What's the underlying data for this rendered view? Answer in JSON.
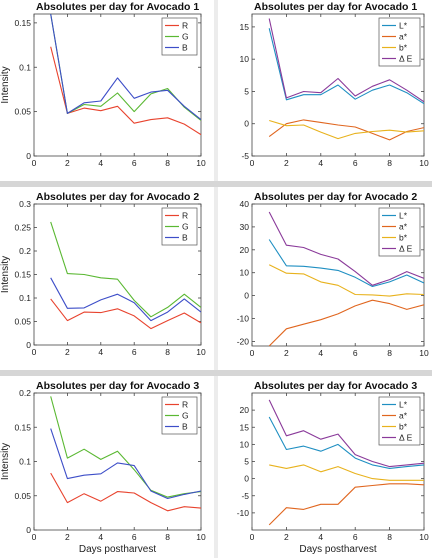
{
  "colors": {
    "R": "#e8432e",
    "G": "#5ab832",
    "B": "#3d4ec8",
    "L": "#1f8fc2",
    "a": "#e0661f",
    "b": "#e8b21d",
    "dE": "#8a3a9a",
    "axis": "#444444",
    "grid": "#888888"
  },
  "chart_data": [
    {
      "type": "line",
      "title": "Absolutes per day for Avocado 1",
      "xlabel": "",
      "ylabel": "Intensity",
      "xlim": [
        0,
        10
      ],
      "ylim": [
        0,
        0.16
      ],
      "xticks": [
        0,
        2,
        4,
        6,
        8,
        10
      ],
      "yticks": [
        0,
        0.05,
        0.1,
        0.15
      ],
      "ytick_labels": [
        "0",
        "0.05",
        "0.1",
        "0.15"
      ],
      "legend": "top-right",
      "x": [
        1,
        2,
        3,
        4,
        5,
        6,
        7,
        8,
        9,
        10
      ],
      "series": [
        {
          "name": "R",
          "color_key": "R",
          "values": [
            0.123,
            0.048,
            0.054,
            0.051,
            0.056,
            0.037,
            0.041,
            0.043,
            0.036,
            0.024
          ]
        },
        {
          "name": "G",
          "color_key": "G",
          "values": [
            0.16,
            0.048,
            0.058,
            0.056,
            0.071,
            0.05,
            0.07,
            0.076,
            0.055,
            0.04
          ]
        },
        {
          "name": "B",
          "color_key": "B",
          "values": [
            0.16,
            0.048,
            0.06,
            0.062,
            0.088,
            0.065,
            0.072,
            0.074,
            0.056,
            0.041
          ]
        }
      ]
    },
    {
      "type": "line",
      "title": "Absolutes per day for Avocado 1",
      "xlabel": "",
      "ylabel": "",
      "xlim": [
        0,
        10
      ],
      "ylim": [
        -5,
        17
      ],
      "xticks": [
        0,
        2,
        4,
        6,
        8,
        10
      ],
      "yticks": [
        -5,
        0,
        5,
        10,
        15
      ],
      "ytick_labels": [
        "-5",
        "0",
        "5",
        "10",
        "15"
      ],
      "legend": "top-right",
      "x": [
        1,
        2,
        3,
        4,
        5,
        6,
        7,
        8,
        9,
        10
      ],
      "series": [
        {
          "name": "L*",
          "color_key": "L",
          "values": [
            14.8,
            3.7,
            4.5,
            4.5,
            6.0,
            3.8,
            5.2,
            6.0,
            4.8,
            3.1
          ]
        },
        {
          "name": "a*",
          "color_key": "a",
          "values": [
            -2.0,
            0.0,
            0.6,
            0.2,
            -0.2,
            -0.5,
            -1.5,
            -2.5,
            -1.2,
            -0.6
          ]
        },
        {
          "name": "b*",
          "color_key": "b",
          "values": [
            0.5,
            -0.3,
            -0.2,
            -1.3,
            -2.3,
            -1.5,
            -1.2,
            -1.0,
            -1.3,
            -1.1
          ]
        },
        {
          "name": "Δ E",
          "color_key": "dE",
          "values": [
            16.3,
            4.0,
            5.0,
            4.8,
            7.0,
            4.3,
            5.8,
            6.8,
            5.2,
            3.4
          ]
        }
      ]
    },
    {
      "type": "line",
      "title": "Absolutes per day for Avocado 2",
      "xlabel": "",
      "ylabel": "Intensity",
      "xlim": [
        0,
        10
      ],
      "ylim": [
        0,
        0.3
      ],
      "xticks": [
        0,
        2,
        4,
        6,
        8,
        10
      ],
      "yticks": [
        0,
        0.05,
        0.1,
        0.15,
        0.2,
        0.25,
        0.3
      ],
      "ytick_labels": [
        "0",
        "0.05",
        "0.1",
        "0.15",
        "0.2",
        "0.25",
        "0.3"
      ],
      "legend": "top-right",
      "x": [
        1,
        2,
        3,
        4,
        5,
        6,
        7,
        8,
        9,
        10
      ],
      "series": [
        {
          "name": "R",
          "color_key": "R",
          "values": [
            0.098,
            0.052,
            0.07,
            0.069,
            0.077,
            0.062,
            0.035,
            0.052,
            0.068,
            0.047
          ]
        },
        {
          "name": "G",
          "color_key": "G",
          "values": [
            0.262,
            0.152,
            0.15,
            0.143,
            0.14,
            0.095,
            0.06,
            0.08,
            0.108,
            0.08
          ]
        },
        {
          "name": "B",
          "color_key": "B",
          "values": [
            0.143,
            0.078,
            0.079,
            0.096,
            0.108,
            0.09,
            0.052,
            0.07,
            0.098,
            0.07
          ]
        }
      ]
    },
    {
      "type": "line",
      "title": "Absolutes per day for Avocado 2",
      "xlabel": "",
      "ylabel": "",
      "xlim": [
        0,
        10
      ],
      "ylim": [
        -22,
        40
      ],
      "xticks": [
        0,
        2,
        4,
        6,
        8,
        10
      ],
      "yticks": [
        -20,
        -10,
        0,
        10,
        20,
        30,
        40
      ],
      "ytick_labels": [
        "-20",
        "-10",
        "0",
        "10",
        "20",
        "30",
        "40"
      ],
      "legend": "top-right",
      "x": [
        1,
        2,
        3,
        4,
        5,
        6,
        7,
        8,
        9,
        10
      ],
      "series": [
        {
          "name": "L*",
          "color_key": "L",
          "values": [
            24.5,
            13.0,
            12.8,
            12.0,
            11.0,
            8.0,
            4.0,
            6.0,
            9.0,
            5.5
          ]
        },
        {
          "name": "a*",
          "color_key": "a",
          "values": [
            -22.0,
            -14.5,
            -12.5,
            -10.5,
            -8.0,
            -4.5,
            -2.0,
            -3.5,
            -6.0,
            -4.0
          ]
        },
        {
          "name": "b*",
          "color_key": "b",
          "values": [
            13.5,
            9.8,
            9.5,
            6.0,
            4.5,
            0.5,
            0.3,
            -0.2,
            0.8,
            0.5
          ]
        },
        {
          "name": "Δ E",
          "color_key": "dE",
          "values": [
            36.5,
            22.0,
            21.0,
            18.0,
            16.0,
            10.5,
            4.5,
            7.0,
            10.5,
            7.5
          ]
        }
      ]
    },
    {
      "type": "line",
      "title": "Absolutes per day for Avocado 3",
      "xlabel": "Days postharvest",
      "ylabel": "Intensity",
      "xlim": [
        0,
        10
      ],
      "ylim": [
        0,
        0.2
      ],
      "xticks": [
        0,
        2,
        4,
        6,
        8,
        10
      ],
      "yticks": [
        0,
        0.05,
        0.1,
        0.15,
        0.2
      ],
      "ytick_labels": [
        "0",
        "0.05",
        "0.1",
        "0.15",
        "0.2"
      ],
      "legend": "top-right",
      "x": [
        1,
        2,
        3,
        4,
        5,
        6,
        7,
        8,
        9,
        10
      ],
      "series": [
        {
          "name": "R",
          "color_key": "R",
          "values": [
            0.083,
            0.04,
            0.053,
            0.042,
            0.056,
            0.054,
            0.04,
            0.028,
            0.034,
            0.032
          ]
        },
        {
          "name": "G",
          "color_key": "G",
          "values": [
            0.195,
            0.105,
            0.118,
            0.103,
            0.115,
            0.088,
            0.058,
            0.048,
            0.053,
            0.056
          ]
        },
        {
          "name": "B",
          "color_key": "B",
          "values": [
            0.148,
            0.075,
            0.08,
            0.082,
            0.098,
            0.094,
            0.057,
            0.046,
            0.052,
            0.057
          ]
        }
      ]
    },
    {
      "type": "line",
      "title": "Absolutes per day for Avocado 3",
      "xlabel": "Days postharvest",
      "ylabel": "",
      "xlim": [
        0,
        10
      ],
      "ylim": [
        -15,
        25
      ],
      "xticks": [
        0,
        2,
        4,
        6,
        8,
        10
      ],
      "yticks": [
        -10,
        -5,
        0,
        5,
        10,
        15,
        20
      ],
      "ytick_labels": [
        "-10",
        "-5",
        "0",
        "5",
        "10",
        "15",
        "20"
      ],
      "legend": "top-right",
      "x": [
        1,
        2,
        3,
        4,
        5,
        6,
        7,
        8,
        9,
        10
      ],
      "series": [
        {
          "name": "L*",
          "color_key": "L",
          "values": [
            18.0,
            8.5,
            9.5,
            8.0,
            10.0,
            6.0,
            4.0,
            3.0,
            3.5,
            4.0
          ]
        },
        {
          "name": "a*",
          "color_key": "a",
          "values": [
            -13.5,
            -8.5,
            -9.0,
            -7.5,
            -7.5,
            -2.5,
            -2.0,
            -1.5,
            -1.5,
            -1.8
          ]
        },
        {
          "name": "b*",
          "color_key": "b",
          "values": [
            4.0,
            3.0,
            4.0,
            2.0,
            3.5,
            1.5,
            0.0,
            -0.5,
            -0.5,
            -0.5
          ]
        },
        {
          "name": "Δ E",
          "color_key": "dE",
          "values": [
            23.0,
            12.5,
            14.0,
            11.5,
            13.0,
            7.0,
            5.0,
            3.5,
            4.0,
            4.5
          ]
        }
      ]
    }
  ]
}
